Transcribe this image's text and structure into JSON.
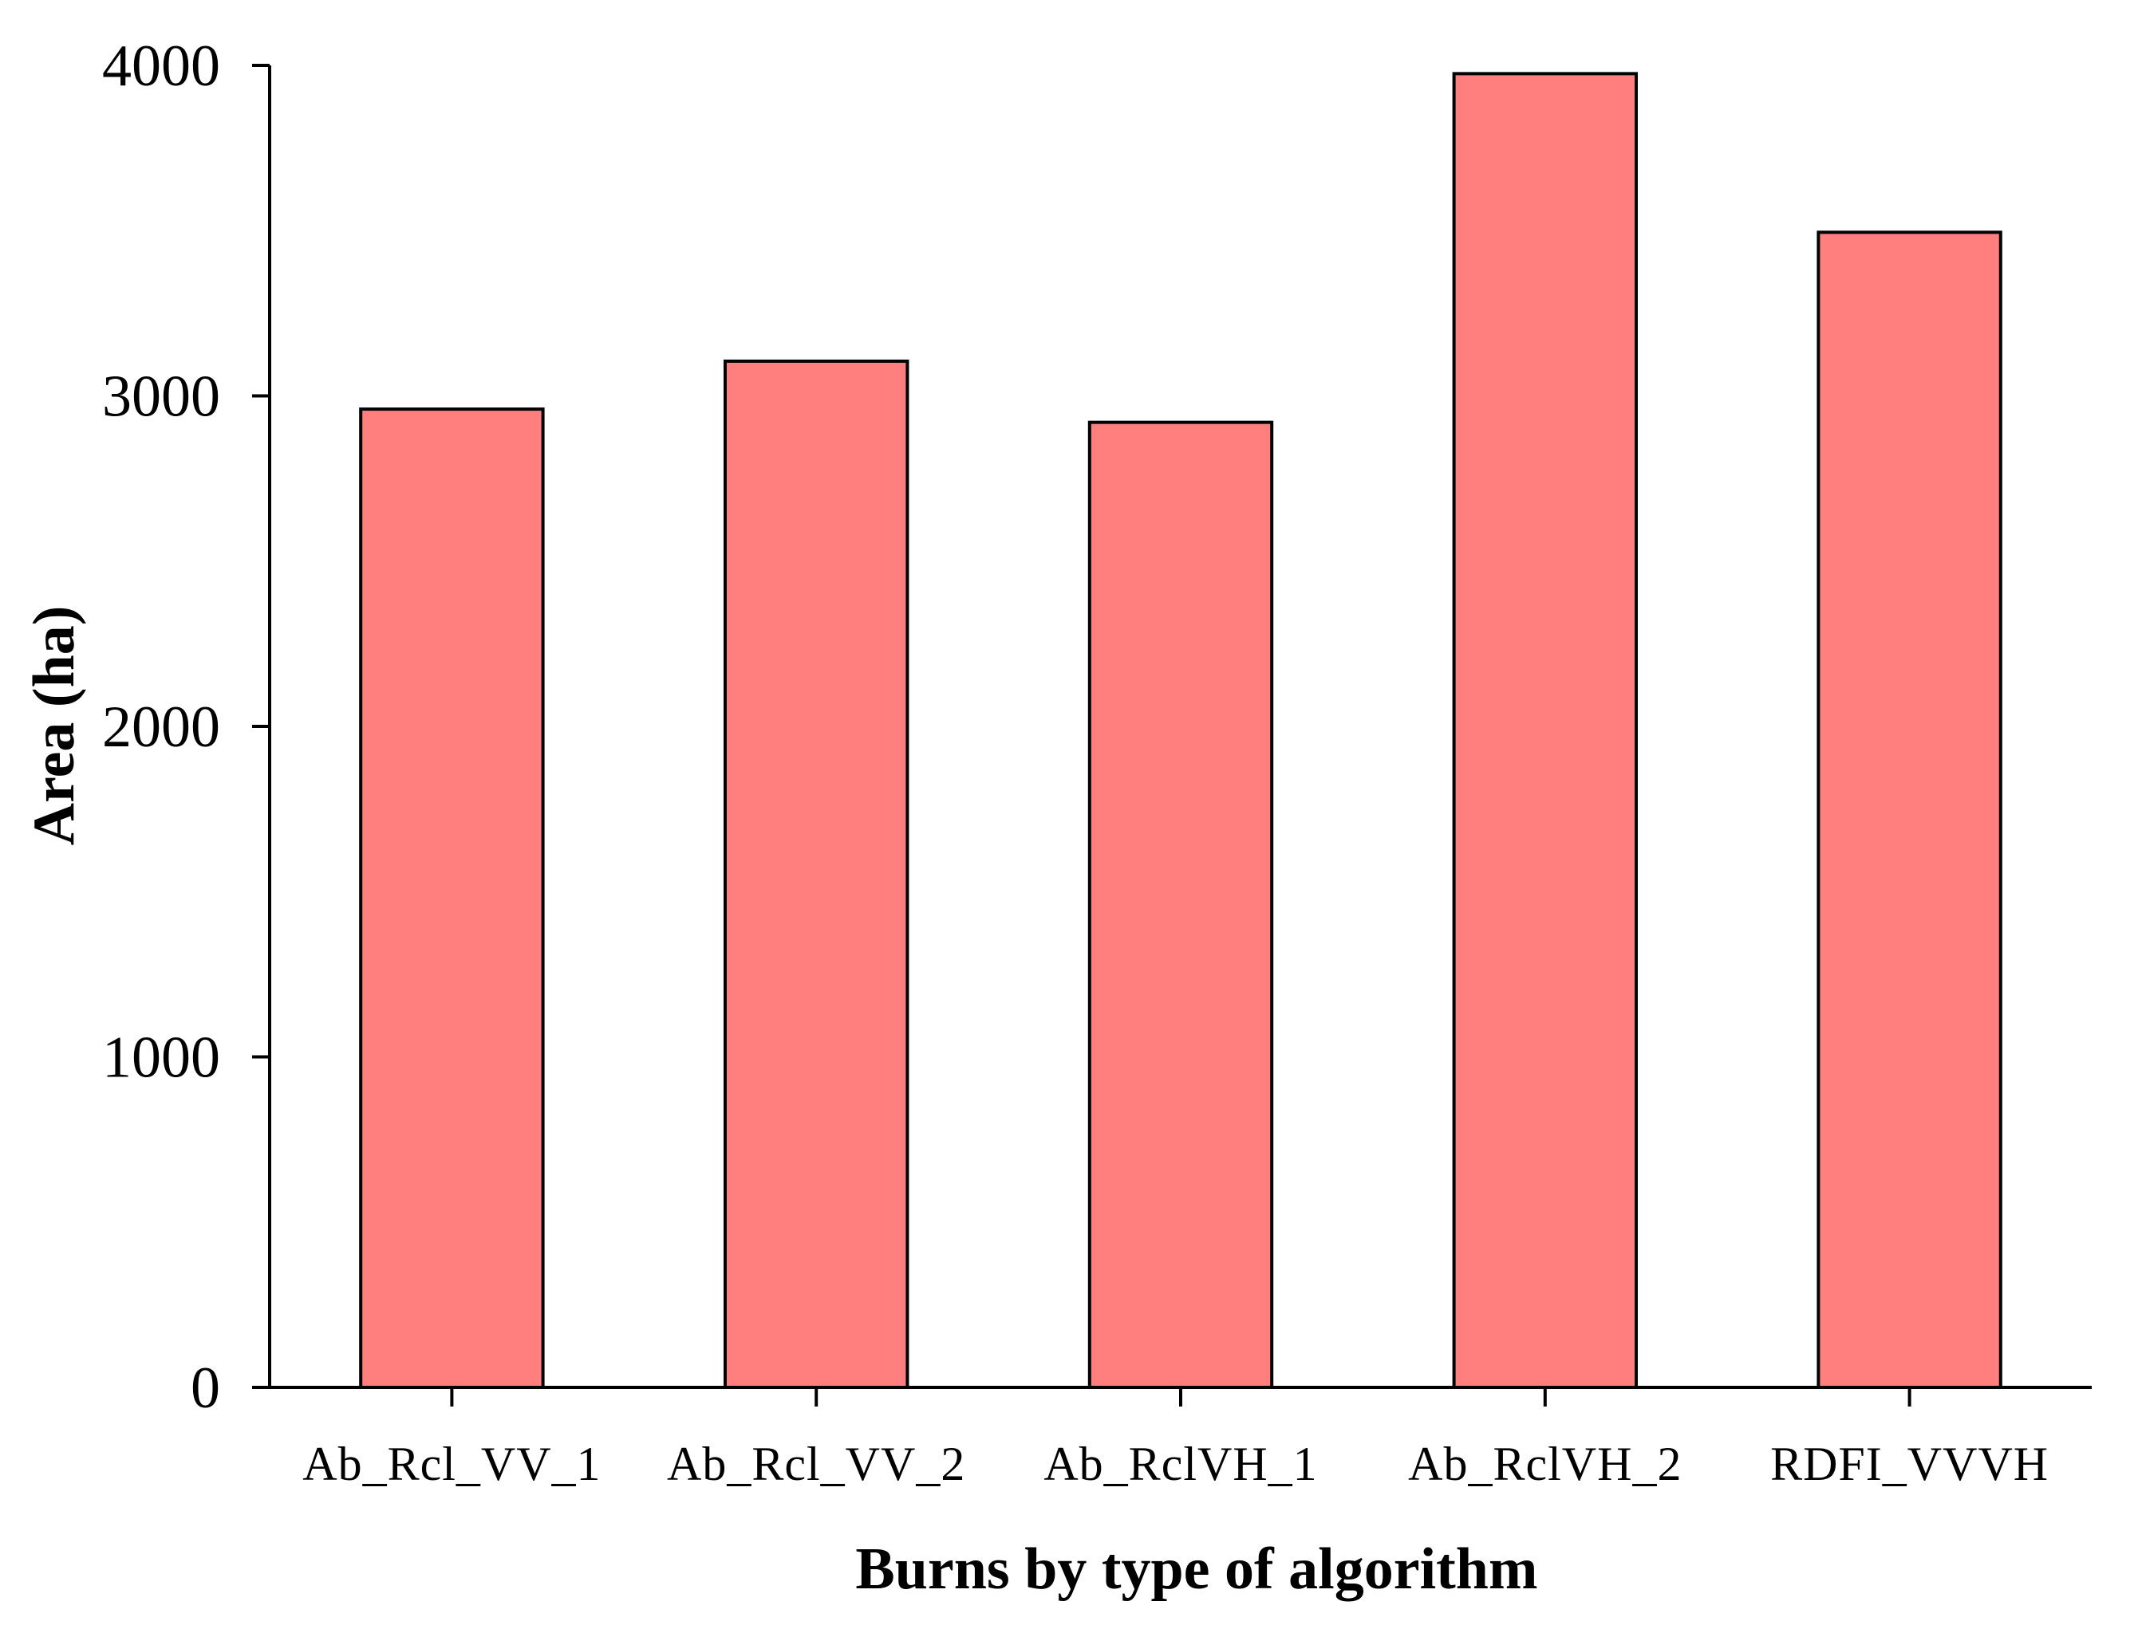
{
  "chart_data": {
    "type": "bar",
    "categories": [
      "Ab_Rcl_VV_1",
      "Ab_Rcl_VV_2",
      "Ab_RclVH_1",
      "Ab_RclVH_2",
      "RDFI_VVVH"
    ],
    "values": [
      2960,
      3105,
      2920,
      3975,
      3495
    ],
    "title": "",
    "xlabel": "Burns by type of algorithm",
    "ylabel": "Area (ha)",
    "ylim": [
      0,
      4000
    ],
    "yticks": [
      0,
      1000,
      2000,
      3000,
      4000
    ],
    "grid": false,
    "legend": "none",
    "bar_color": "#FF7F7F",
    "bar_edge_color": "#000000"
  }
}
